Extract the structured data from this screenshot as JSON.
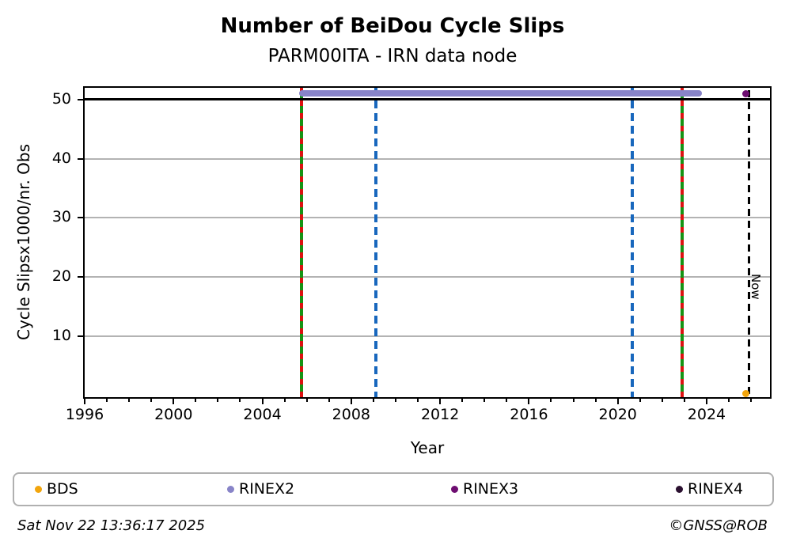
{
  "header": {
    "title": "Number of BeiDou Cycle Slips",
    "subtitle": "PARM00ITA - IRN data node"
  },
  "footer": {
    "timestamp": "Sat Nov 22 13:36:17 2025",
    "credit": "©GNSS@ROB"
  },
  "colors": {
    "bds": "#f2a50c",
    "rinex2": "#8884c8",
    "rinex3": "#6e0d71",
    "rinex4": "#2b1030",
    "event_green": "#149414",
    "event_red": "#dd1111",
    "event_blue": "#1867bd",
    "now_line": "#000000",
    "grid": "#b3b3b3",
    "reference_line": "#000000"
  },
  "legend": {
    "items": [
      {
        "label": "BDS",
        "color_key": "bds"
      },
      {
        "label": "RINEX2",
        "color_key": "rinex2"
      },
      {
        "label": "RINEX3",
        "color_key": "rinex3"
      },
      {
        "label": "RINEX4",
        "color_key": "rinex4"
      }
    ]
  },
  "chart_data": {
    "type": "scatter",
    "title": "Number of BeiDou Cycle Slips",
    "subtitle": "PARM00ITA - IRN data node",
    "xlabel": "Year",
    "ylabel": "Cycle Slipsx1000/nr. Obs",
    "xlim": [
      1996,
      2026.85
    ],
    "ylim": [
      -0.3,
      52.0
    ],
    "xticks_major": [
      1996,
      2000,
      2004,
      2008,
      2012,
      2016,
      2020,
      2024
    ],
    "xticks_minor_every": 1,
    "yticks": [
      10,
      20,
      30,
      40,
      50
    ],
    "grid": "horizontal-only",
    "reference_line_y": 50,
    "series": [
      {
        "name": "BDS",
        "color_key": "bds",
        "points": [
          {
            "x": 2025.78,
            "y": 0.3
          }
        ]
      },
      {
        "name": "RINEX2",
        "color_key": "rinex2",
        "style": "dense-run",
        "run": {
          "x_start": 2005.65,
          "x_end": 2023.8,
          "y": 51
        }
      },
      {
        "name": "RINEX3",
        "color_key": "rinex3",
        "points": [
          {
            "x": 2025.78,
            "y": 51
          }
        ]
      },
      {
        "name": "RINEX4",
        "color_key": "rinex4",
        "points": []
      }
    ],
    "event_lines": [
      {
        "x": 2005.76,
        "style": "green-solid-red-dashed"
      },
      {
        "x": 2009.1,
        "style": "blue-dashed"
      },
      {
        "x": 2020.65,
        "style": "blue-dashed"
      },
      {
        "x": 2022.9,
        "style": "green-solid-red-dashed"
      },
      {
        "x": 2025.89,
        "style": "black-dashed-now"
      }
    ],
    "annotations": [
      {
        "text": "Now",
        "x": 2025.89,
        "rotation": 90,
        "position": "bottom-right-of-line"
      }
    ],
    "legend_position": "bottom-outside"
  }
}
